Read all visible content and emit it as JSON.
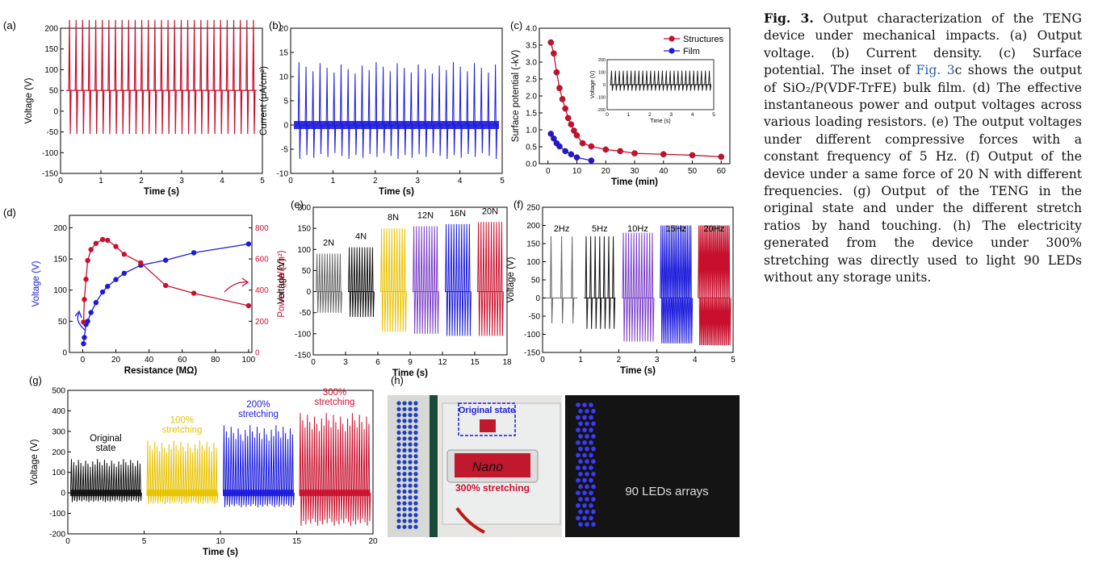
{
  "caption": {
    "label": "Fig. 3.",
    "pre": "Output characterization of the TENG device under mechanical impacts. (a) Output voltage. (b) Current density. (c) Surface potential. The inset of",
    "link": "Fig. 3",
    "post": "c shows the output of SiO₂/P(VDF-TrFE) bulk film. (d) The effective instantaneous power and output voltages across various loading resistors. (e) The output voltages under different compressive forces with a constant frequency of 5 Hz. (f) Output of the device under a same force of 20 N with different frequencies. (g) Output of the TENG in the original state and under the different stretch ratios by hand touching. (h) The electricity generated from the device under 300% stretching was directly used to light 90 LEDs without any storage units."
  },
  "panels": {
    "a": {
      "label": "(a)",
      "xlabel": "Time (s)",
      "ylabel": "Voltage (V)",
      "xticks": [
        "0",
        "1",
        "2",
        "3",
        "4",
        "5"
      ],
      "yticks": [
        "-150",
        "-100",
        "-50",
        "0",
        "50",
        "100",
        "150",
        "200"
      ]
    },
    "b": {
      "label": "(b)",
      "xlabel": "Time (s)",
      "ylabel": "Current (μA/cm²)",
      "xticks": [
        "0",
        "1",
        "2",
        "3",
        "4",
        "5"
      ],
      "yticks": [
        "-10",
        "-5",
        "0",
        "5",
        "10",
        "15",
        "20"
      ]
    },
    "c": {
      "label": "(c)",
      "xlabel": "Time (min)",
      "ylabel": "Surface potential (-kV)",
      "xticks": [
        "0",
        "10",
        "20",
        "30",
        "40",
        "50",
        "60"
      ],
      "yticks": [
        "0.0",
        "0.5",
        "1.0",
        "1.5",
        "2.0",
        "2.5",
        "3.0",
        "3.5",
        "4.0"
      ],
      "legend": [
        "Structures",
        "Film"
      ],
      "inset": {
        "xlabel": "Time (s)",
        "ylabel": "Voltage (V)",
        "xticks": [
          "0",
          "1",
          "2",
          "3",
          "4",
          "5"
        ],
        "yticks": [
          "-200",
          "-100",
          "0",
          "100",
          "200"
        ]
      }
    },
    "d": {
      "label": "(d)",
      "xlabel": "Resistance (MΩ)",
      "ylabel": "Voltage (V)",
      "ylabel2": "Power (μW/cm²)",
      "xticks": [
        "0",
        "20",
        "40",
        "60",
        "80",
        "100"
      ],
      "yticks": [
        "0",
        "50",
        "100",
        "150",
        "200"
      ],
      "yticks2": [
        "0",
        "200",
        "400",
        "600",
        "800"
      ]
    },
    "e": {
      "label": "(e)",
      "xlabel": "Time (s)",
      "ylabel": "Voltage (V)",
      "xticks": [
        "0",
        "3",
        "6",
        "9",
        "12",
        "15",
        "18"
      ],
      "yticks": [
        "-150",
        "-100",
        "-50",
        "0",
        "50",
        "100",
        "150",
        "200"
      ],
      "groups": [
        "2N",
        "4N",
        "8N",
        "12N",
        "16N",
        "20N"
      ]
    },
    "f": {
      "label": "(f)",
      "xlabel": "Time (s)",
      "ylabel": "Voltage (V)",
      "xticks": [
        "0",
        "1",
        "2",
        "3",
        "4",
        "5"
      ],
      "yticks": [
        "-150",
        "-100",
        "-50",
        "0",
        "50",
        "100",
        "150",
        "200",
        "250"
      ],
      "groups": [
        "2Hz",
        "5Hz",
        "10Hz",
        "15Hz",
        "20Hz"
      ]
    },
    "g": {
      "label": "(g)",
      "xlabel": "Time (s)",
      "ylabel": "Voltage (V)",
      "xticks": [
        "0",
        "5",
        "10",
        "15",
        "20"
      ],
      "yticks": [
        "-200",
        "-100",
        "0",
        "100",
        "200",
        "300",
        "400",
        "500"
      ],
      "groups": [
        [
          "Original",
          "state"
        ],
        [
          "100%",
          "stretching"
        ],
        [
          "200%",
          "stretching"
        ],
        [
          "300%",
          "stretching"
        ]
      ]
    },
    "h": {
      "label": "(h)",
      "original_state": "Original state",
      "stretch_label": "300% stretching",
      "nano": "Nano",
      "leds": "90 LEDs arrays"
    }
  },
  "colors": {
    "red": "#c8102e",
    "blue": "#1a1adb",
    "black": "#111111",
    "gray": "#666666",
    "yellow": "#e8c300",
    "purple": "#7b3fc8"
  },
  "chart_data": [
    {
      "type": "line",
      "panel": "c",
      "xlabel": "Time (min)",
      "ylabel": "Surface potential (-kV)",
      "ylim": [
        0,
        4
      ],
      "xlim": [
        -3,
        63
      ],
      "series": [
        {
          "name": "Structures",
          "color": "#c8102e",
          "x": [
            1,
            2,
            3,
            4,
            5,
            6,
            7,
            8,
            9,
            10,
            12,
            15,
            20,
            25,
            30,
            40,
            50,
            60
          ],
          "y": [
            3.85,
            3.5,
            2.9,
            2.4,
            2.05,
            1.75,
            1.45,
            1.25,
            1.05,
            0.9,
            0.65,
            0.55,
            0.45,
            0.4,
            0.33,
            0.3,
            0.27,
            0.22
          ]
        },
        {
          "name": "Film",
          "color": "#1a1adb",
          "x": [
            1,
            2,
            3,
            4,
            6,
            8,
            10,
            15
          ],
          "y": [
            0.95,
            0.8,
            0.65,
            0.55,
            0.4,
            0.3,
            0.2,
            0.1
          ]
        }
      ]
    },
    {
      "type": "line",
      "panel": "d",
      "xlabel": "Resistance (MΩ)",
      "xlim": [
        -8,
        102
      ],
      "series": [
        {
          "name": "Voltage",
          "axis": "left",
          "ylim": [
            0,
            220
          ],
          "color": "#1a1adb",
          "x": [
            0.5,
            1,
            2,
            3,
            5,
            8,
            12,
            15,
            20,
            25,
            35,
            50,
            67,
            100
          ],
          "y": [
            14,
            24,
            45,
            50,
            64,
            80,
            97,
            106,
            117,
            127,
            140,
            148,
            160,
            174
          ]
        },
        {
          "name": "Power",
          "axis": "right",
          "ylim": [
            0,
            880
          ],
          "color": "#c8102e",
          "x": [
            0.5,
            1,
            2,
            3,
            5,
            8,
            12,
            15,
            20,
            25,
            35,
            50,
            67,
            100
          ],
          "y": [
            195,
            340,
            470,
            590,
            660,
            700,
            725,
            720,
            680,
            630,
            575,
            430,
            380,
            300
          ]
        }
      ]
    }
  ]
}
